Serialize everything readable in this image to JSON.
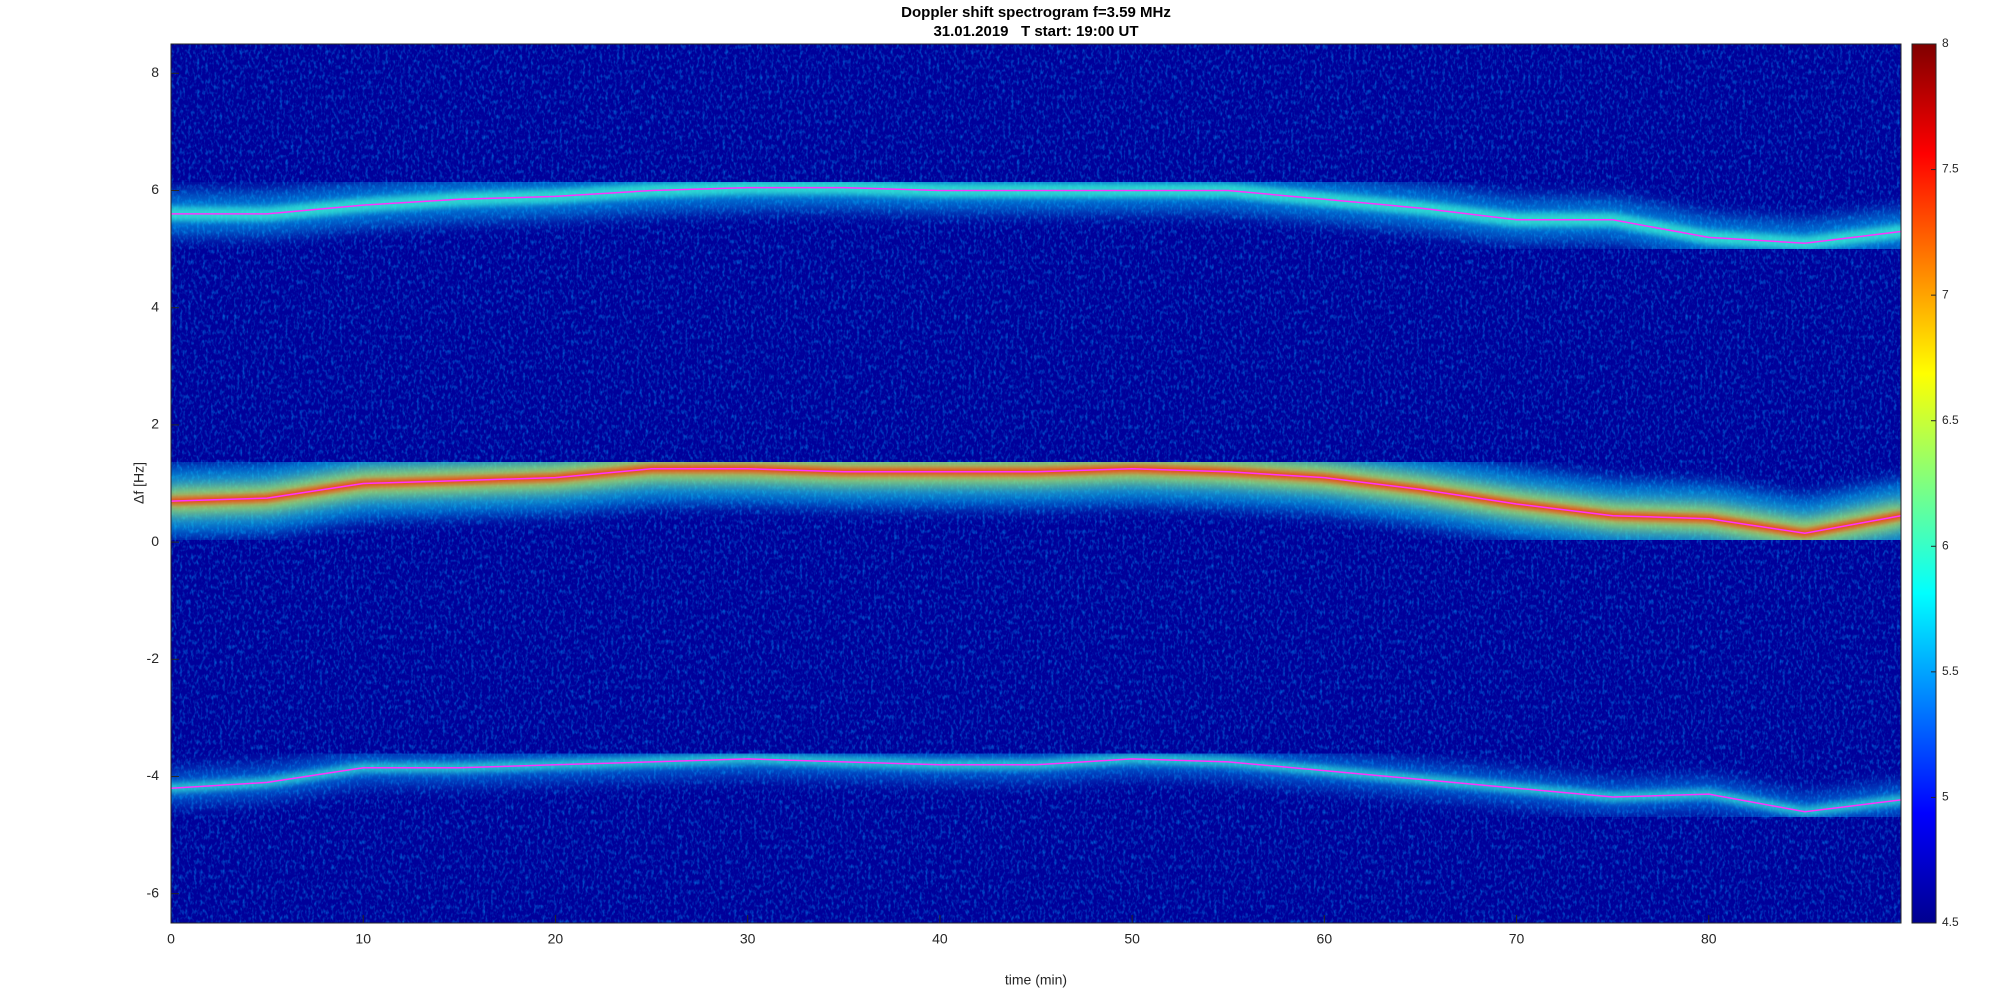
{
  "chart_data": {
    "type": "spectrogram",
    "title": "Doppler shift spectrogram f=3.59 MHz",
    "subtitle": "31.01.2019   T start: 19:00 UT",
    "x_label": "time (min)",
    "y_label": "Δf [Hz]",
    "xlim": [
      0,
      90
    ],
    "xticks": [
      0,
      10,
      20,
      30,
      40,
      50,
      60,
      70,
      80
    ],
    "ylim": [
      -6.5,
      8.5
    ],
    "yticks": [
      -6,
      -4,
      -2,
      0,
      2,
      4,
      6,
      8
    ],
    "clim": [
      4.5,
      8
    ],
    "cticks": [
      4.5,
      5,
      5.5,
      6,
      6.5,
      7,
      7.5,
      8
    ],
    "x": [
      0,
      5,
      10,
      15,
      20,
      25,
      30,
      35,
      40,
      45,
      50,
      55,
      60,
      65,
      70,
      75,
      80,
      85,
      90
    ],
    "series": [
      {
        "color": "#ff33ff",
        "values": [
          5.6,
          5.6,
          5.75,
          5.85,
          5.9,
          6.0,
          6.05,
          6.05,
          6.0,
          6.0,
          6.0,
          6.0,
          5.85,
          5.7,
          5.5,
          5.5,
          5.2,
          5.1,
          5.3
        ]
      },
      {
        "color": "#ff33ff",
        "values": [
          0.7,
          0.75,
          1.0,
          1.05,
          1.1,
          1.25,
          1.25,
          1.2,
          1.2,
          1.2,
          1.25,
          1.2,
          1.1,
          0.9,
          0.65,
          0.45,
          0.4,
          0.15,
          0.45
        ]
      },
      {
        "color": "#ff33ff",
        "values": [
          -4.2,
          -4.1,
          -3.85,
          -3.85,
          -3.8,
          -3.75,
          -3.7,
          -3.75,
          -3.8,
          -3.8,
          -3.7,
          -3.75,
          -3.9,
          -4.05,
          -4.2,
          -4.35,
          -4.3,
          -4.6,
          -4.4
        ]
      }
    ]
  }
}
